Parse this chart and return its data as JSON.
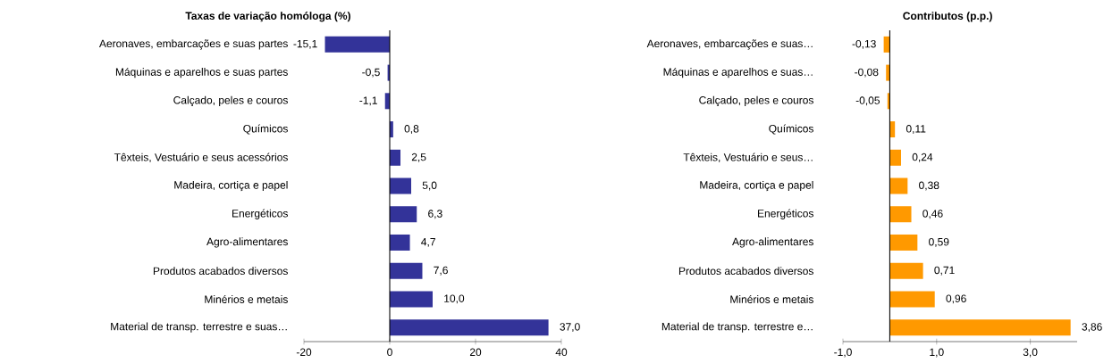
{
  "chart_data": [
    {
      "type": "bar",
      "orientation": "horizontal",
      "title": "Taxas de variação homóloga (%)",
      "categories": [
        "Aeronaves, embarcações e suas partes",
        "Máquinas e aparelhos e suas partes",
        "Calçado, peles e couros",
        "Químicos",
        "Têxteis, Vestuário e seus acessórios",
        "Madeira, cortiça e papel",
        "Energéticos",
        "Agro-alimentares",
        "Produtos acabados diversos",
        "Minérios e metais",
        "Material de transp. terrestre e suas…"
      ],
      "values": [
        -15.1,
        -0.5,
        -1.1,
        0.8,
        2.5,
        5.0,
        6.3,
        4.7,
        7.6,
        10.0,
        37.0
      ],
      "value_labels": [
        "-15,1",
        "-0,5",
        "-1,1",
        "0,8",
        "2,5",
        "5,0",
        "6,3",
        "4,7",
        "7,6",
        "10,0",
        "37,0"
      ],
      "color": "#333399",
      "xlim": [
        -20,
        40
      ],
      "xticks": [
        -20,
        0,
        20,
        40
      ]
    },
    {
      "type": "bar",
      "orientation": "horizontal",
      "title": "Contributos (p.p.)",
      "categories": [
        "Aeronaves, embarcações e suas…",
        "Máquinas e aparelhos e suas…",
        "Calçado, peles e couros",
        "Químicos",
        "Têxteis, Vestuário e seus…",
        "Madeira, cortiça e papel",
        "Energéticos",
        "Agro-alimentares",
        "Produtos acabados diversos",
        "Minérios e metais",
        "Material de transp. terrestre e…"
      ],
      "values": [
        -0.13,
        -0.08,
        -0.05,
        0.11,
        0.24,
        0.38,
        0.46,
        0.59,
        0.71,
        0.96,
        3.86
      ],
      "value_labels": [
        "-0,13",
        "-0,08",
        "-0,05",
        "0,11",
        "0,24",
        "0,38",
        "0,46",
        "0,59",
        "0,71",
        "0,96",
        "3,86"
      ],
      "color": "#ff9900",
      "xlim": [
        -1,
        4
      ],
      "xticks": [
        {
          "value": -1,
          "label": "-1,0"
        },
        {
          "value": 1,
          "label": "1,0"
        },
        {
          "value": 3,
          "label": "3,0"
        }
      ]
    }
  ]
}
